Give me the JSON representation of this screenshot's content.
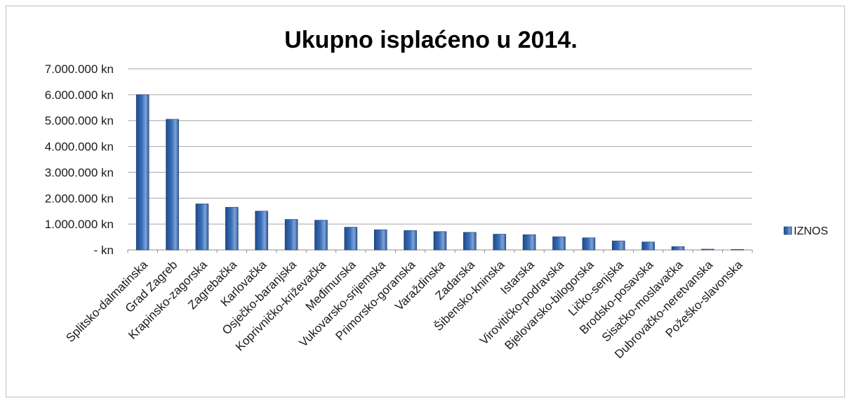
{
  "chart_data": {
    "type": "bar",
    "title": "Ukupno isplaćeno u 2014.",
    "xlabel": "",
    "ylabel": "",
    "ylim": [
      0,
      7000000
    ],
    "yticks": [
      0,
      1000000,
      2000000,
      3000000,
      4000000,
      5000000,
      6000000,
      7000000
    ],
    "ytick_labels": [
      "- kn",
      "1.000.000 kn",
      "2.000.000 kn",
      "3.000.000 kn",
      "4.000.000 kn",
      "5.000.000 kn",
      "6.000.000 kn",
      "7.000.000 kn"
    ],
    "grid": true,
    "legend_position": "right",
    "color": "#3a6eb8",
    "categories": [
      "Splitsko-dalmatinska",
      "Grad Zagreb",
      "Krapinsko-zagorska",
      "Zagrebačka",
      "Karlovačka",
      "Osječko-baranjska",
      "Koprivničko-križevačka",
      "Međimurska",
      "Vukovarsko-srijemska",
      "Primorsko-goranska",
      "Varaždinska",
      "Zadarska",
      "Šibensko-kninska",
      "Istarska",
      "Virovitičko-podravska",
      "Bjelovarsko-bilogorska",
      "Ličko-senjska",
      "Brodsko-posavska",
      "Sisačko-moslavačka",
      "Dubrovačko-neretvanska",
      "Požeško-slavonska"
    ],
    "series": [
      {
        "name": "IZNOS",
        "values": [
          6000000,
          5050000,
          1780000,
          1650000,
          1500000,
          1180000,
          1150000,
          880000,
          780000,
          750000,
          710000,
          680000,
          610000,
          590000,
          510000,
          470000,
          350000,
          310000,
          130000,
          30000,
          10000
        ]
      }
    ]
  }
}
